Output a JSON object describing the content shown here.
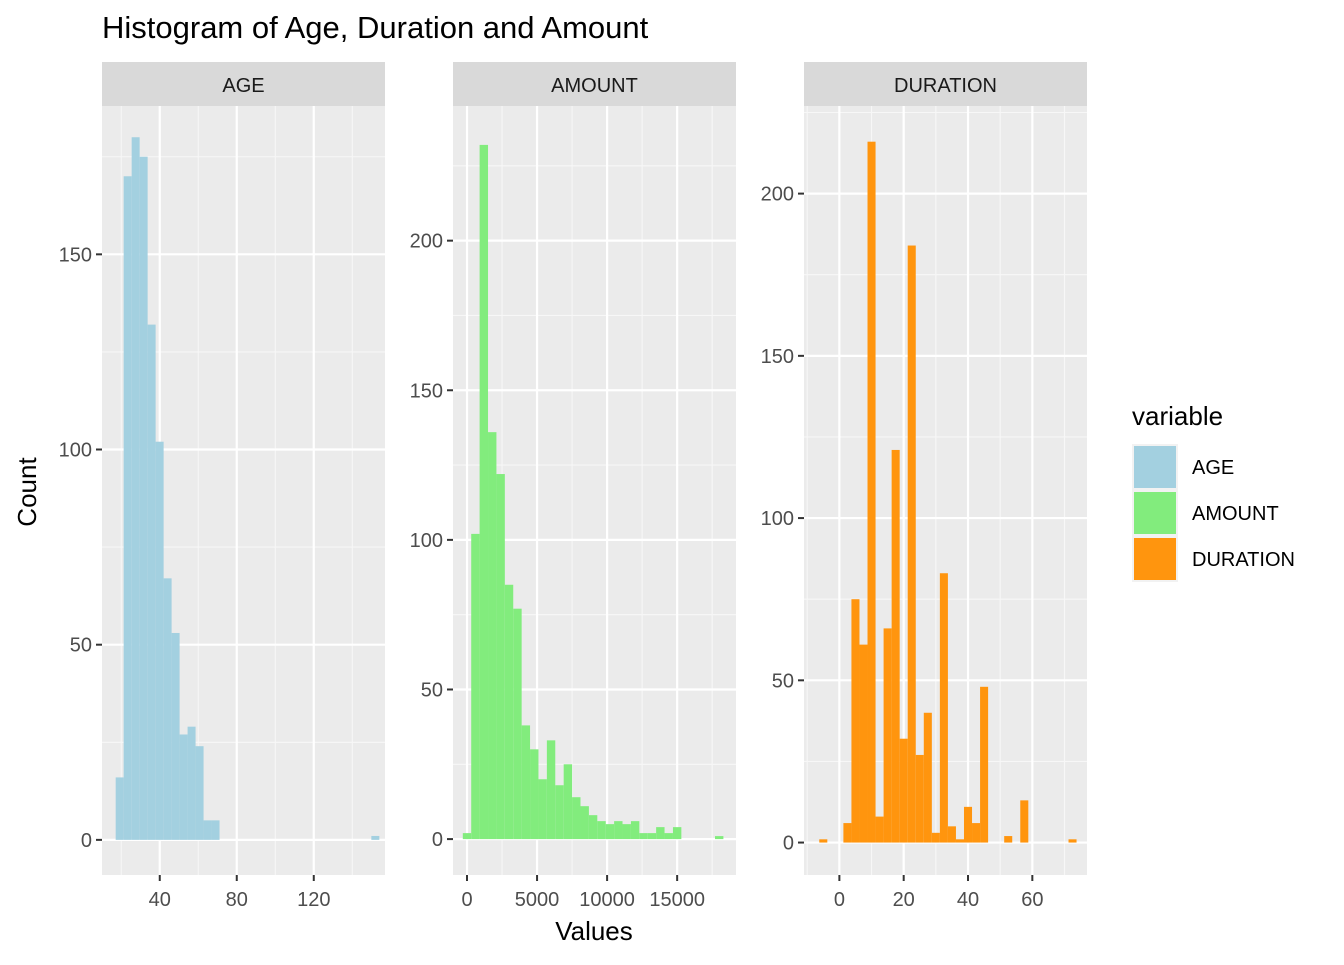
{
  "chart_data": {
    "type": "bar",
    "title": "Histogram of Age, Duration and Amount",
    "xlabel": "Values",
    "ylabel": "Count",
    "legend": {
      "title": "variable",
      "position": "right",
      "entries": [
        {
          "label": "AGE",
          "color": "#A3D0E0"
        },
        {
          "label": "AMOUNT",
          "color": "#82EC7D"
        },
        {
          "label": "DURATION",
          "color": "#FF950E"
        }
      ]
    },
    "grid": true,
    "panels": [
      {
        "strip": "AGE",
        "color": "#A3D0E0",
        "xlim": [
          10,
          157
        ],
        "ylim": [
          -9,
          188
        ],
        "xticks": [
          40,
          80,
          120
        ],
        "yticks": [
          0,
          50,
          100,
          150
        ],
        "bin_width": 4.15,
        "bins": [
          {
            "x": 19.18,
            "count": 16
          },
          {
            "x": 23.33,
            "count": 170
          },
          {
            "x": 27.48,
            "count": 180
          },
          {
            "x": 31.63,
            "count": 175
          },
          {
            "x": 35.78,
            "count": 132
          },
          {
            "x": 39.93,
            "count": 102
          },
          {
            "x": 44.08,
            "count": 67
          },
          {
            "x": 48.23,
            "count": 53
          },
          {
            "x": 52.38,
            "count": 27
          },
          {
            "x": 56.53,
            "count": 29
          },
          {
            "x": 60.68,
            "count": 24
          },
          {
            "x": 64.83,
            "count": 5
          },
          {
            "x": 68.98,
            "count": 5
          },
          {
            "x": 151.98,
            "count": 1
          }
        ]
      },
      {
        "strip": "AMOUNT",
        "color": "#82EC7D",
        "xlim": [
          -1000,
          19200
        ],
        "ylim": [
          -12,
          245
        ],
        "xticks": [
          0,
          5000,
          10000,
          15000
        ],
        "yticks": [
          0,
          50,
          100,
          150,
          200
        ],
        "bin_width": 600,
        "bins": [
          {
            "x": 0,
            "count": 2
          },
          {
            "x": 600,
            "count": 102
          },
          {
            "x": 1200,
            "count": 232
          },
          {
            "x": 1800,
            "count": 136
          },
          {
            "x": 2400,
            "count": 122
          },
          {
            "x": 3000,
            "count": 85
          },
          {
            "x": 3600,
            "count": 77
          },
          {
            "x": 4200,
            "count": 38
          },
          {
            "x": 4800,
            "count": 30
          },
          {
            "x": 5400,
            "count": 20
          },
          {
            "x": 6000,
            "count": 33
          },
          {
            "x": 6600,
            "count": 18
          },
          {
            "x": 7200,
            "count": 25
          },
          {
            "x": 7800,
            "count": 14
          },
          {
            "x": 8400,
            "count": 11
          },
          {
            "x": 9000,
            "count": 8
          },
          {
            "x": 9600,
            "count": 6
          },
          {
            "x": 10200,
            "count": 5
          },
          {
            "x": 10800,
            "count": 6
          },
          {
            "x": 11400,
            "count": 5
          },
          {
            "x": 12000,
            "count": 6
          },
          {
            "x": 12600,
            "count": 2
          },
          {
            "x": 13200,
            "count": 2
          },
          {
            "x": 13800,
            "count": 4
          },
          {
            "x": 14400,
            "count": 2
          },
          {
            "x": 15000,
            "count": 4
          },
          {
            "x": 18000,
            "count": 1
          }
        ]
      },
      {
        "strip": "DURATION",
        "color": "#FF950E",
        "xlim": [
          -11,
          77
        ],
        "ylim": [
          -10,
          227
        ],
        "xticks": [
          0,
          20,
          40,
          60
        ],
        "yticks": [
          0,
          50,
          100,
          150,
          200
        ],
        "bin_width": 2.5,
        "bins": [
          {
            "x": -5,
            "count": 1
          },
          {
            "x": 2.5,
            "count": 6
          },
          {
            "x": 5,
            "count": 75
          },
          {
            "x": 7.5,
            "count": 61
          },
          {
            "x": 10,
            "count": 216
          },
          {
            "x": 12.5,
            "count": 8
          },
          {
            "x": 15,
            "count": 66
          },
          {
            "x": 17.5,
            "count": 121
          },
          {
            "x": 20,
            "count": 32
          },
          {
            "x": 22.5,
            "count": 184
          },
          {
            "x": 25,
            "count": 27
          },
          {
            "x": 27.5,
            "count": 40
          },
          {
            "x": 30,
            "count": 3
          },
          {
            "x": 32.5,
            "count": 83
          },
          {
            "x": 35,
            "count": 5
          },
          {
            "x": 37.5,
            "count": 1
          },
          {
            "x": 40,
            "count": 11
          },
          {
            "x": 42.5,
            "count": 6
          },
          {
            "x": 45,
            "count": 48
          },
          {
            "x": 52.5,
            "count": 2
          },
          {
            "x": 57.5,
            "count": 13
          },
          {
            "x": 72.5,
            "count": 1
          }
        ]
      }
    ]
  }
}
